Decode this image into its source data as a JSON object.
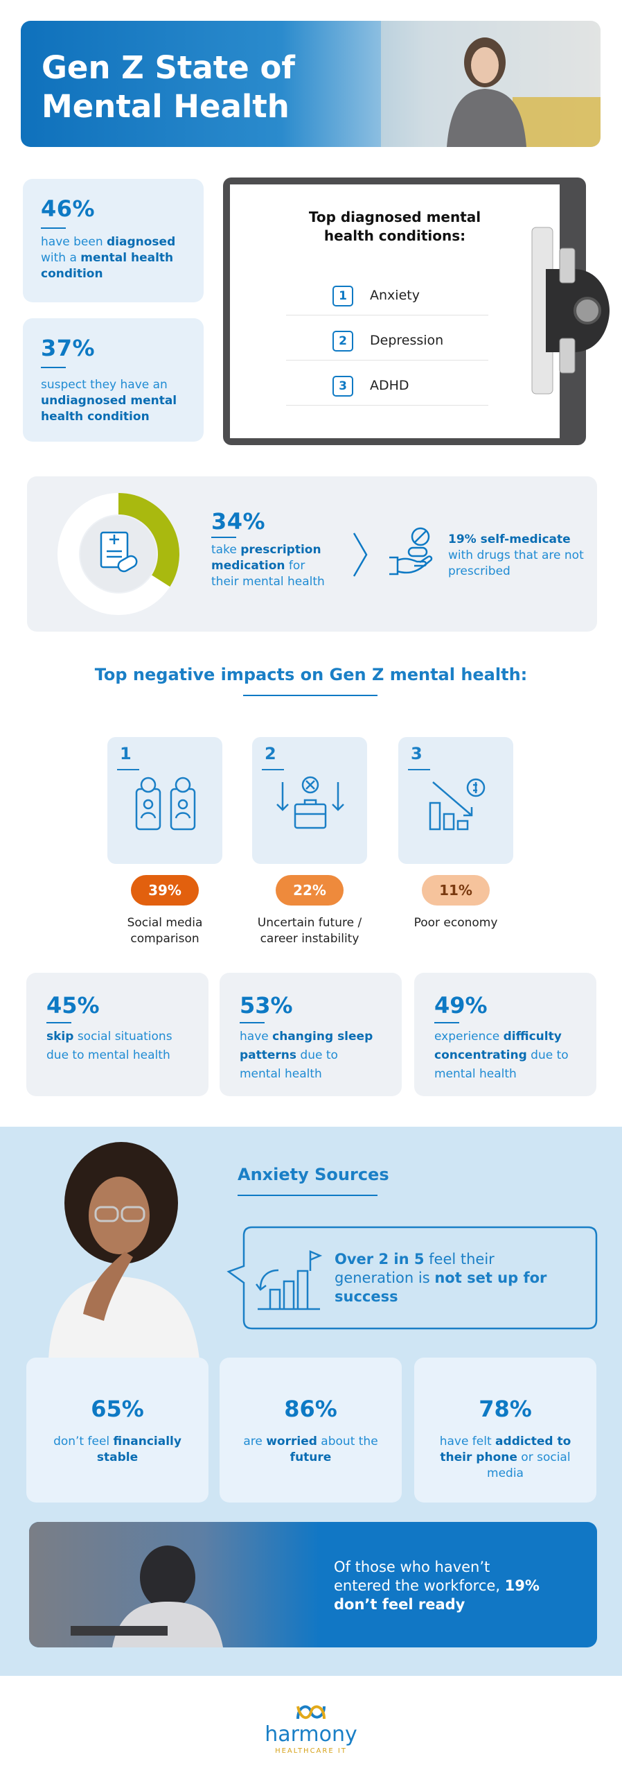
{
  "header": {
    "title_line1": "Gen Z State of",
    "title_line2": "Mental Health"
  },
  "stats_top": [
    {
      "value": "46%",
      "text": [
        {
          "t": "have been "
        },
        {
          "t": "diagnosed",
          "bold": true
        },
        {
          "t": " with a "
        },
        {
          "t": "mental health condition",
          "bold": true
        }
      ]
    },
    {
      "value": "37%",
      "text": [
        {
          "t": "suspect they have an "
        },
        {
          "t": "undiagnosed mental health condition",
          "bold": true
        }
      ]
    }
  ],
  "clipboard": {
    "title": "Top diagnosed mental health conditions:",
    "items": [
      {
        "rank": "1",
        "label": "Anxiety"
      },
      {
        "rank": "2",
        "label": "Depression"
      },
      {
        "rank": "3",
        "label": "ADHD"
      }
    ]
  },
  "prescription": {
    "value": 34,
    "label": "34%",
    "color": "#a9b90f",
    "text": [
      {
        "t": "take "
      },
      {
        "t": "prescription medication",
        "bold": true
      },
      {
        "t": " for their mental health"
      }
    ],
    "self_medicate": [
      {
        "t": "19% self-medicate",
        "bold": true
      },
      {
        "t": " with drugs that are not prescribed"
      }
    ]
  },
  "impacts": {
    "title": "Top negative impacts on Gen Z mental health:",
    "items": [
      {
        "rank": "1",
        "percent": "39%",
        "label": "Social media comparison",
        "color": "#e2600e",
        "text_color": "#ffffff"
      },
      {
        "rank": "2",
        "percent": "22%",
        "label": "Uncertain future / career instability",
        "color": "#ee8a3c",
        "text_color": "#ffffff"
      },
      {
        "rank": "3",
        "percent": "11%",
        "label": "Poor economy",
        "color": "#f6c39c",
        "text_color": "#7a3a10"
      }
    ]
  },
  "effects": [
    {
      "value": "45%",
      "text": [
        {
          "t": "skip",
          "bold": true
        },
        {
          "t": " social situations due to mental health"
        }
      ]
    },
    {
      "value": "53%",
      "text": [
        {
          "t": "have "
        },
        {
          "t": "changing sleep patterns",
          "bold": true
        },
        {
          "t": " due to mental health"
        }
      ]
    },
    {
      "value": "49%",
      "text": [
        {
          "t": "experience "
        },
        {
          "t": "difficulty concentrating",
          "bold": true
        },
        {
          "t": " due to mental health"
        }
      ]
    }
  ],
  "anxiety": {
    "title": "Anxiety Sources",
    "callout": [
      {
        "t": "Over 2 in 5",
        "bold": true
      },
      {
        "t": " feel their generation is "
      },
      {
        "t": "not set up for success",
        "bold": true
      }
    ],
    "stats": [
      {
        "value": "65%",
        "text": [
          {
            "t": "don’t feel "
          },
          {
            "t": "financially stable",
            "bold": true
          }
        ]
      },
      {
        "value": "86%",
        "text": [
          {
            "t": "are "
          },
          {
            "t": "worried",
            "bold": true
          },
          {
            "t": " about the "
          },
          {
            "t": "future",
            "bold": true
          }
        ]
      },
      {
        "value": "78%",
        "text": [
          {
            "t": "have felt "
          },
          {
            "t": "addicted to their phone",
            "bold": true
          },
          {
            "t": " or social media"
          }
        ]
      }
    ]
  },
  "workforce": [
    {
      "t": "Of those who haven’t entered the workforce, "
    },
    {
      "t": "19% don’t feel ready",
      "bold": true
    }
  ],
  "footer": {
    "brand": "harmony",
    "tagline": "HEALTHCARE IT"
  }
}
